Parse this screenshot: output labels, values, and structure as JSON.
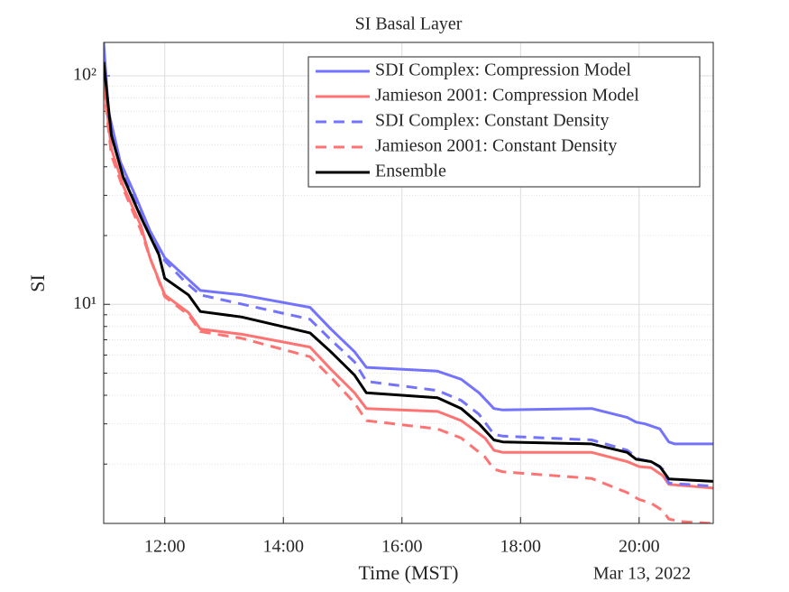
{
  "chart_data": {
    "type": "line",
    "title": "SI Basal Layer",
    "xlabel": "Time (MST)",
    "date_label": "Mar 13, 2022",
    "ylabel": "SI",
    "yscale": "log",
    "grid": true,
    "xlim": [
      10.97,
      21.25
    ],
    "ylim": [
      1.1,
      140
    ],
    "xticks": [
      {
        "value": 12,
        "label": "12:00"
      },
      {
        "value": 14,
        "label": "14:00"
      },
      {
        "value": 16,
        "label": "16:00"
      },
      {
        "value": 18,
        "label": "18:00"
      },
      {
        "value": 20,
        "label": "20:00"
      }
    ],
    "yticks": [
      {
        "value": 10,
        "label": "10¹"
      },
      {
        "value": 100,
        "label": "10²"
      }
    ],
    "minor_yticks": [
      2,
      3,
      4,
      5,
      6,
      7,
      8,
      9,
      20,
      30,
      40,
      50,
      60,
      70,
      80,
      90
    ],
    "legend": "upper right",
    "series": [
      {
        "name": "SDI Complex: Compression Model",
        "color": "#7373ff",
        "line_style": "solid",
        "x": [
          10.97,
          11.05,
          11.25,
          11.5,
          11.75,
          12.0,
          12.35,
          12.6,
          13.3,
          14.45,
          14.8,
          15.2,
          15.4,
          16.6,
          17.0,
          17.3,
          17.55,
          17.7,
          19.2,
          19.8,
          19.95,
          20.1,
          20.35,
          20.5,
          20.6,
          21.25
        ],
        "values": [
          140,
          70,
          42,
          30,
          21,
          16,
          13.2,
          11.5,
          11,
          9.7,
          7.8,
          6.2,
          5.3,
          5.1,
          4.7,
          4.1,
          3.5,
          3.45,
          3.5,
          3.2,
          3.05,
          3.0,
          2.85,
          2.5,
          2.45,
          2.45
        ]
      },
      {
        "name": "Jamieson 2001: Compression Model",
        "color": "#ff7373",
        "line_style": "solid",
        "x": [
          10.97,
          11.1,
          11.3,
          11.6,
          11.75,
          12.0,
          12.4,
          12.6,
          13.3,
          14.45,
          14.8,
          15.2,
          15.4,
          16.6,
          17.0,
          17.4,
          17.55,
          17.7,
          19.2,
          19.8,
          20.0,
          20.2,
          20.4,
          20.5,
          21.25
        ],
        "values": [
          95,
          48,
          33,
          22,
          16,
          11,
          9.2,
          7.8,
          7.4,
          6.5,
          5.2,
          4.1,
          3.5,
          3.4,
          3.1,
          2.6,
          2.3,
          2.25,
          2.25,
          2.05,
          1.95,
          1.93,
          1.78,
          1.63,
          1.57
        ]
      },
      {
        "name": "SDI Complex: Constant Density",
        "color": "#7373ff",
        "line_style": "dashed",
        "x": [
          10.97,
          11.05,
          11.25,
          11.5,
          11.75,
          12.0,
          12.35,
          12.6,
          14.45,
          14.8,
          15.2,
          15.4,
          16.6,
          17.0,
          17.3,
          17.55,
          17.7,
          19.2,
          19.8,
          20.0,
          20.2,
          20.4,
          20.5,
          21.25
        ],
        "values": [
          125,
          65,
          41,
          29,
          20,
          15.5,
          12.5,
          11,
          8.6,
          7.0,
          5.6,
          4.6,
          4.2,
          3.8,
          3.3,
          2.7,
          2.65,
          2.55,
          2.3,
          2.1,
          2.05,
          1.9,
          1.65,
          1.6
        ]
      },
      {
        "name": "Jamieson 2001: Constant Density",
        "color": "#ff7373",
        "line_style": "dashed",
        "x": [
          10.97,
          11.1,
          11.3,
          11.6,
          11.75,
          12.0,
          12.4,
          12.6,
          13.3,
          14.45,
          14.8,
          15.2,
          15.4,
          16.6,
          17.0,
          17.4,
          17.55,
          17.7,
          19.2,
          19.8,
          20.0,
          20.2,
          20.4,
          20.5,
          20.7,
          21.25
        ],
        "values": [
          90,
          45,
          32,
          21,
          16,
          10.8,
          9.0,
          7.6,
          7.1,
          5.9,
          4.8,
          3.7,
          3.1,
          2.85,
          2.6,
          2.15,
          1.9,
          1.85,
          1.73,
          1.5,
          1.4,
          1.35,
          1.25,
          1.15,
          1.12,
          1.1
        ]
      },
      {
        "name": "Ensemble",
        "color": "#000000",
        "line_style": "solid",
        "x": [
          10.97,
          11.1,
          11.3,
          11.6,
          11.9,
          12.0,
          12.4,
          12.6,
          13.3,
          14.45,
          14.8,
          15.2,
          15.4,
          16.6,
          17.0,
          17.3,
          17.55,
          17.7,
          19.2,
          19.8,
          19.95,
          20.2,
          20.35,
          20.5,
          21.25
        ],
        "values": [
          115,
          55,
          36,
          24,
          16.5,
          13,
          11,
          9.3,
          8.8,
          7.5,
          6.2,
          4.9,
          4.1,
          3.9,
          3.5,
          3.0,
          2.55,
          2.5,
          2.45,
          2.25,
          2.1,
          2.05,
          1.95,
          1.72,
          1.68
        ]
      }
    ]
  }
}
